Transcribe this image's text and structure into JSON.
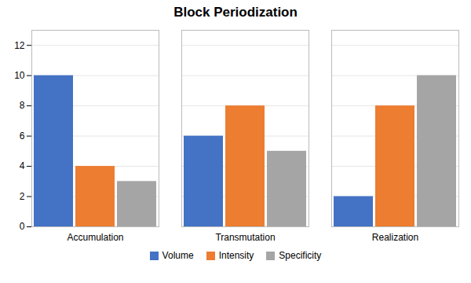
{
  "chart_data": {
    "type": "bar",
    "title": "Block Periodization",
    "categories": [
      "Accumulation",
      "Transmutation",
      "Realization"
    ],
    "series": [
      {
        "name": "Volume",
        "color": "#4472C4",
        "values": [
          10,
          6,
          2
        ]
      },
      {
        "name": "Intensity",
        "color": "#ED7D31",
        "values": [
          4,
          8,
          8
        ]
      },
      {
        "name": "Specificity",
        "color": "#A5A5A5",
        "values": [
          3,
          5,
          10
        ]
      }
    ],
    "ylim": [
      0,
      13
    ],
    "yticks": [
      0,
      2,
      4,
      6,
      8,
      10,
      12
    ],
    "grid": true,
    "legend": "bottom"
  }
}
